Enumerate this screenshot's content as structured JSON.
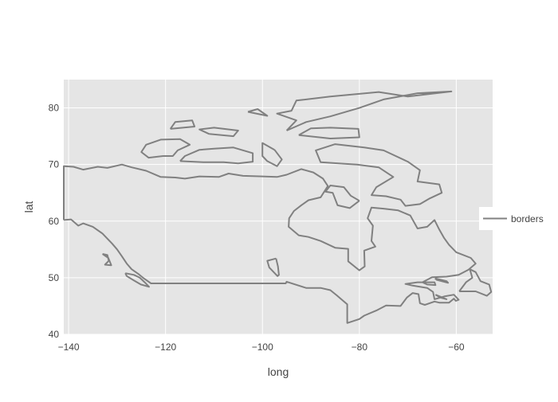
{
  "chart_data": {
    "type": "line",
    "title": "",
    "xlabel": "long",
    "ylabel": "lat",
    "xlim": [
      -141,
      -52.5
    ],
    "ylim": [
      40,
      85
    ],
    "xticks": [
      -140,
      -120,
      -100,
      -80,
      -60
    ],
    "yticks": [
      40,
      50,
      60,
      70,
      80
    ],
    "xtick_labels": [
      "−140",
      "−120",
      "−100",
      "−80",
      "−60"
    ],
    "ytick_labels": [
      "40",
      "50",
      "60",
      "70",
      "80"
    ],
    "grid": true,
    "legend_position": "right",
    "colors": {
      "plot_bg": "#e5e5e5",
      "grid": "#ffffff",
      "line": "#808080"
    },
    "series": [
      {
        "name": "borders",
        "segments": [
          [
            [
              -141,
              60.2
            ],
            [
              -139.5,
              60.3
            ],
            [
              -138,
              59.2
            ],
            [
              -137,
              59.6
            ],
            [
              -135,
              59.0
            ],
            [
              -133,
              57.8
            ],
            [
              -131,
              56.0
            ],
            [
              -130,
              55.0
            ],
            [
              -129,
              53.8
            ],
            [
              -128,
              52.5
            ],
            [
              -127,
              51.5
            ],
            [
              -125.5,
              50.6
            ],
            [
              -124.5,
              49.9
            ],
            [
              -123,
              49.0
            ],
            [
              -110,
              49.0
            ],
            [
              -95.2,
              49.0
            ],
            [
              -95.0,
              49.3
            ],
            [
              -91,
              48.2
            ],
            [
              -88,
              48.2
            ],
            [
              -86,
              47.8
            ],
            [
              -84.7,
              46.9
            ],
            [
              -84,
              46.4
            ],
            [
              -82.5,
              45.3
            ],
            [
              -82.5,
              43.0
            ],
            [
              -82.5,
              42.0
            ],
            [
              -80,
              42.7
            ],
            [
              -79,
              43.3
            ],
            [
              -76.5,
              44.2
            ],
            [
              -74.5,
              45.1
            ],
            [
              -71.5,
              45.0
            ],
            [
              -70.2,
              46.5
            ],
            [
              -69,
              47.3
            ],
            [
              -67.8,
              47.1
            ],
            [
              -67.5,
              45.5
            ],
            [
              -66.5,
              45.2
            ],
            [
              -64.5,
              45.8
            ],
            [
              -63.5,
              45.6
            ],
            [
              -61.5,
              45.6
            ],
            [
              -60.5,
              46.3
            ],
            [
              -60.1,
              45.9
            ],
            [
              -59.5,
              46.1
            ],
            [
              -60.5,
              47.0
            ],
            [
              -62.5,
              46.7
            ],
            [
              -64.5,
              46.2
            ],
            [
              -64.8,
              47.5
            ],
            [
              -66,
              48.2
            ],
            [
              -69,
              48.6
            ],
            [
              -70.5,
              48.9
            ],
            [
              -68,
              49.2
            ],
            [
              -64.5,
              49.2
            ],
            [
              -64.3,
              48.7
            ],
            [
              -66,
              48.8
            ],
            [
              -67,
              49.2
            ],
            [
              -65,
              50.1
            ],
            [
              -62,
              50.2
            ],
            [
              -59.5,
              50.5
            ],
            [
              -57.5,
              51.4
            ],
            [
              -56,
              52.5
            ],
            [
              -57,
              53.5
            ],
            [
              -60,
              54.5
            ],
            [
              -61.5,
              55.8
            ],
            [
              -62.5,
              57.0
            ],
            [
              -63.5,
              58.5
            ],
            [
              -64.5,
              60.2
            ],
            [
              -66,
              59.0
            ],
            [
              -68,
              58.7
            ],
            [
              -69.5,
              61.0
            ],
            [
              -72,
              61.9
            ],
            [
              -75,
              62.2
            ],
            [
              -77.5,
              62.4
            ],
            [
              -78.3,
              60.5
            ],
            [
              -77.2,
              59.2
            ],
            [
              -77.5,
              56.5
            ],
            [
              -76.7,
              55.5
            ],
            [
              -79,
              54.8
            ],
            [
              -78.9,
              52.0
            ],
            [
              -80,
              51.3
            ],
            [
              -82.3,
              52.9
            ],
            [
              -82.3,
              55.1
            ],
            [
              -85,
              55.3
            ],
            [
              -88,
              56.5
            ],
            [
              -90.5,
              57.2
            ],
            [
              -92.5,
              57.5
            ],
            [
              -94.6,
              59.0
            ],
            [
              -94.5,
              60.5
            ],
            [
              -93.5,
              61.8
            ],
            [
              -92,
              62.8
            ],
            [
              -90.5,
              63.7
            ],
            [
              -88,
              64.2
            ],
            [
              -86.5,
              66.2
            ],
            [
              -87.5,
              67.5
            ],
            [
              -89.5,
              68.6
            ],
            [
              -92,
              69.2
            ],
            [
              -95,
              68.2
            ],
            [
              -97,
              67.8
            ],
            [
              -100,
              67.9
            ],
            [
              -104,
              68.0
            ],
            [
              -107,
              68.4
            ],
            [
              -109,
              67.8
            ],
            [
              -113,
              67.9
            ],
            [
              -116,
              67.5
            ],
            [
              -118,
              67.7
            ],
            [
              -121,
              67.8
            ],
            [
              -124,
              68.9
            ],
            [
              -127,
              69.5
            ],
            [
              -129,
              70.0
            ],
            [
              -132,
              69.4
            ],
            [
              -134,
              69.6
            ],
            [
              -137,
              69.1
            ],
            [
              -139,
              69.6
            ],
            [
              -141,
              69.7
            ],
            [
              -141,
              60.2
            ]
          ],
          [
            [
              -133.0,
              54.2
            ],
            [
              -132.0,
              54.0
            ],
            [
              -131.7,
              53.0
            ],
            [
              -132.5,
              52.3
            ],
            [
              -131.2,
              52.2
            ],
            [
              -131.8,
              53.5
            ],
            [
              -133.0,
              54.2
            ]
          ],
          [
            [
              -128.3,
              50.8
            ],
            [
              -126.5,
              50.5
            ],
            [
              -125.3,
              50.0
            ],
            [
              -124.3,
              49.2
            ],
            [
              -123.4,
              48.4
            ],
            [
              -125.1,
              48.8
            ],
            [
              -126.5,
              49.5
            ],
            [
              -128.0,
              50.3
            ],
            [
              -128.3,
              50.8
            ]
          ],
          [
            [
              -97.2,
              53.4
            ],
            [
              -96.8,
              52.0
            ],
            [
              -96.6,
              50.5
            ],
            [
              -96.9,
              50.3
            ],
            [
              -98.6,
              51.8
            ],
            [
              -99.0,
              53.0
            ],
            [
              -97.2,
              53.4
            ]
          ],
          [
            [
              -64.4,
              49.9
            ],
            [
              -62.0,
              49.4
            ],
            [
              -61.7,
              49.1
            ],
            [
              -64.0,
              49.6
            ],
            [
              -64.4,
              49.9
            ]
          ],
          [
            [
              -59.4,
              47.6
            ],
            [
              -56.0,
              47.6
            ],
            [
              -53.7,
              46.8
            ],
            [
              -52.8,
              47.5
            ],
            [
              -53.2,
              48.8
            ],
            [
              -55.0,
              49.4
            ],
            [
              -56.0,
              51.0
            ],
            [
              -57.2,
              51.5
            ],
            [
              -56.7,
              50.0
            ],
            [
              -58.0,
              49.2
            ],
            [
              -59.4,
              47.6
            ]
          ],
          [
            [
              -64.3,
              47.0
            ],
            [
              -62.0,
              46.2
            ],
            [
              -63.3,
              46.5
            ],
            [
              -64.3,
              47.0
            ]
          ],
          [
            [
              -120.5,
              71.5
            ],
            [
              -123.5,
              71.2
            ],
            [
              -125,
              72.2
            ],
            [
              -124,
              73.5
            ],
            [
              -121,
              74.4
            ],
            [
              -117,
              74.5
            ],
            [
              -115,
              73.5
            ],
            [
              -117.5,
              72.5
            ],
            [
              -118.5,
              71.5
            ],
            [
              -120.5,
              71.5
            ]
          ],
          [
            [
              -117,
              70.6
            ],
            [
              -112,
              70.4
            ],
            [
              -108,
              70.4
            ],
            [
              -105,
              70.2
            ],
            [
              -102,
              70.5
            ],
            [
              -102,
              72.0
            ],
            [
              -106,
              73.0
            ],
            [
              -110,
              72.8
            ],
            [
              -113,
              72.6
            ],
            [
              -116,
              71.5
            ],
            [
              -117,
              70.6
            ]
          ],
          [
            [
              -111,
              75.4
            ],
            [
              -106,
              75.0
            ],
            [
              -105,
              76.0
            ],
            [
              -110,
              76.5
            ],
            [
              -113,
              76.2
            ],
            [
              -111,
              75.4
            ]
          ],
          [
            [
              -97.5,
              72.6
            ],
            [
              -96,
              70.9
            ],
            [
              -97,
              69.7
            ],
            [
              -99,
              70.6
            ],
            [
              -100,
              71.5
            ],
            [
              -100,
              73.8
            ],
            [
              -97.5,
              72.6
            ]
          ],
          [
            [
              -92.5,
              75.2
            ],
            [
              -86,
              74.6
            ],
            [
              -80,
              74.8
            ],
            [
              -80.2,
              76.3
            ],
            [
              -86,
              76.5
            ],
            [
              -90,
              76.4
            ],
            [
              -92.5,
              75.2
            ]
          ],
          [
            [
              -79,
              73.0
            ],
            [
              -75,
              72.5
            ],
            [
              -70,
              70.5
            ],
            [
              -67.5,
              69.0
            ],
            [
              -68,
              67.0
            ],
            [
              -63.5,
              66.5
            ],
            [
              -63,
              65.0
            ],
            [
              -65.5,
              64.0
            ],
            [
              -67.5,
              63.0
            ],
            [
              -70.5,
              62.7
            ],
            [
              -71.5,
              63.8
            ],
            [
              -74.5,
              64.4
            ],
            [
              -77.5,
              64.6
            ],
            [
              -76.5,
              66.0
            ],
            [
              -73,
              67.8
            ],
            [
              -76,
              69.5
            ],
            [
              -80.5,
              70.0
            ],
            [
              -88,
              70.4
            ],
            [
              -89,
              72.5
            ],
            [
              -85,
              73.6
            ],
            [
              -79,
              73.0
            ]
          ],
          [
            [
              -80,
              63.6
            ],
            [
              -82,
              62.3
            ],
            [
              -84.5,
              62.8
            ],
            [
              -85.5,
              65.0
            ],
            [
              -87.0,
              65.2
            ],
            [
              -86.0,
              66.3
            ],
            [
              -83.2,
              66.0
            ],
            [
              -81.8,
              64.5
            ],
            [
              -80,
              63.6
            ]
          ],
          [
            [
              -95,
              76.0
            ],
            [
              -91,
              77.5
            ],
            [
              -86,
              78.5
            ],
            [
              -80,
              80.0
            ],
            [
              -75,
              81.5
            ],
            [
              -68,
              82.6
            ],
            [
              -61,
              82.9
            ],
            [
              -70,
              82.0
            ],
            [
              -76,
              82.8
            ],
            [
              -86,
              82.0
            ],
            [
              -93,
              81.3
            ],
            [
              -94,
              79.5
            ],
            [
              -97,
              79.0
            ],
            [
              -93,
              77.8
            ],
            [
              -95,
              76.0
            ]
          ],
          [
            [
              -103,
              79.3
            ],
            [
              -99,
              78.6
            ],
            [
              -101,
              79.8
            ],
            [
              -103,
              79.3
            ]
          ],
          [
            [
              -119,
              76.3
            ],
            [
              -114,
              76.7
            ],
            [
              -114.5,
              77.8
            ],
            [
              -118,
              77.5
            ],
            [
              -119,
              76.3
            ]
          ]
        ]
      }
    ]
  }
}
